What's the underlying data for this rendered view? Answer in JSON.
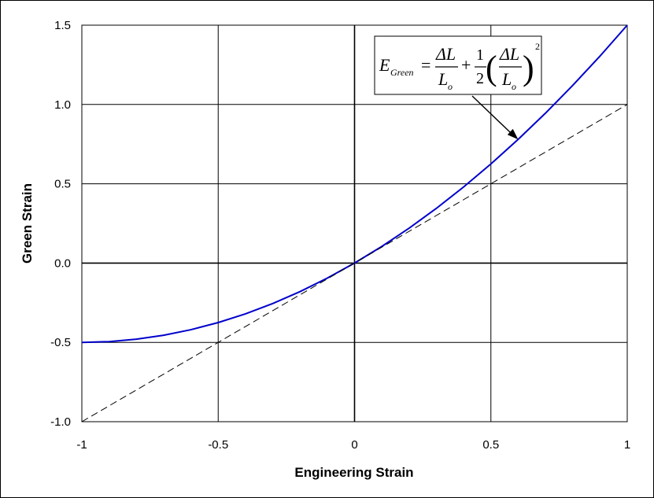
{
  "chart_data": {
    "type": "line",
    "title": "",
    "xlabel": "Engineering Strain",
    "ylabel": "Green Strain",
    "xlim": [
      -1,
      1
    ],
    "ylim": [
      -1.0,
      1.5
    ],
    "x_ticks": [
      "-1",
      "-0.5",
      "0",
      "0.5",
      "1"
    ],
    "y_ticks": [
      "-1.0",
      "-0.5",
      "0.0",
      "0.5",
      "1.0",
      "1.5"
    ],
    "x_tick_values": [
      -1,
      -0.5,
      0,
      0.5,
      1
    ],
    "y_tick_values": [
      -1.0,
      -0.5,
      0.0,
      0.5,
      1.0,
      1.5
    ],
    "grid": true,
    "series": [
      {
        "color": "#0000cc",
        "style": "solid",
        "x": [
          -1,
          -0.9,
          -0.8,
          -0.7,
          -0.6,
          -0.5,
          -0.4,
          -0.3,
          -0.2,
          -0.1,
          0,
          0.1,
          0.2,
          0.3,
          0.4,
          0.5,
          0.6,
          0.7,
          0.8,
          0.9,
          1
        ],
        "y": [
          -0.5,
          -0.495,
          -0.48,
          -0.455,
          -0.42,
          -0.375,
          -0.32,
          -0.255,
          -0.18,
          -0.095,
          0,
          0.105,
          0.22,
          0.345,
          0.48,
          0.625,
          0.78,
          0.945,
          1.12,
          1.305,
          1.5
        ]
      },
      {
        "color": "#000000",
        "style": "dashed",
        "x": [
          -1,
          1
        ],
        "y": [
          -1,
          1
        ]
      }
    ],
    "annotation": {
      "text": "E_Green = ΔL/L_o + 1/2 (ΔL/L_o)^2",
      "parts": {
        "lhs": "E",
        "lhs_sub": "Green",
        "equals": "=",
        "delta": "ΔL",
        "denom": "L",
        "denom_sub": "o",
        "plus": "+",
        "one": "1",
        "two": "2",
        "lparen": "(",
        "rparen": ")",
        "power": "2"
      },
      "arrow_to": [
        0.6,
        0.78
      ]
    }
  }
}
